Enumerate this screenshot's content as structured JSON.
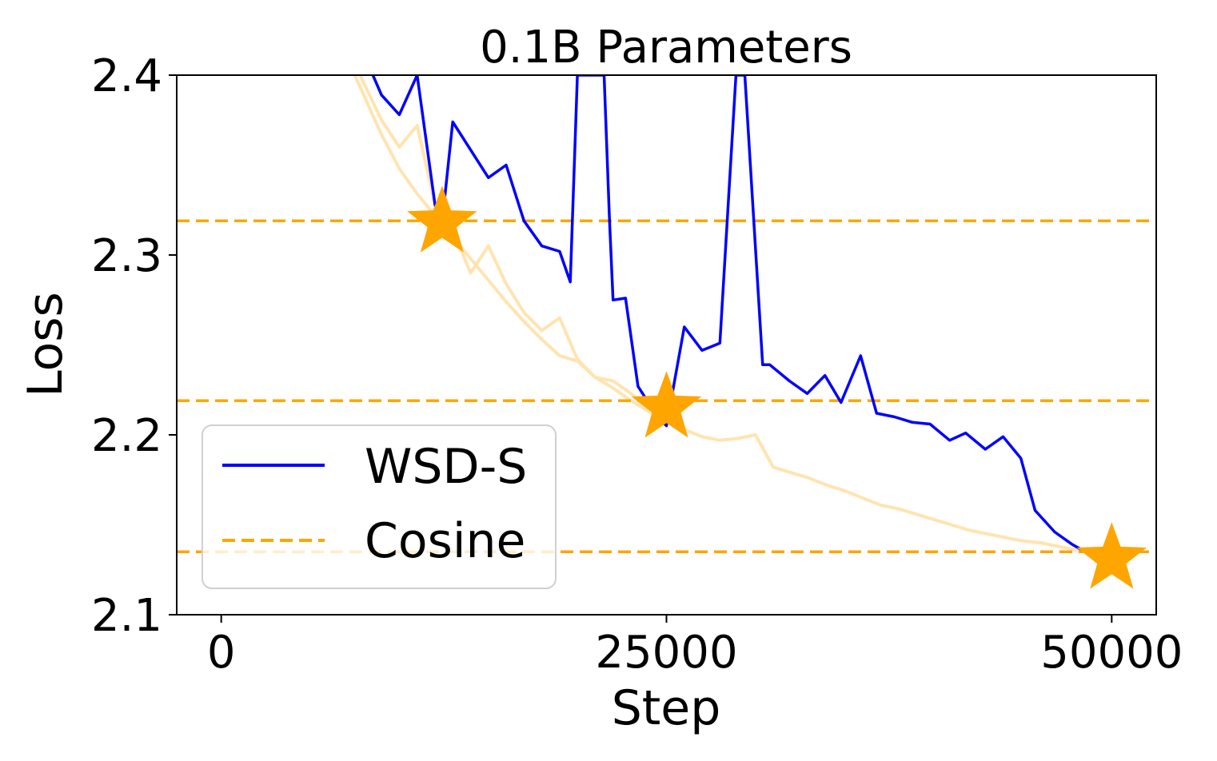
{
  "chart_data": {
    "type": "line",
    "title": "0.1B Parameters",
    "xlabel": "Step",
    "ylabel": "Loss",
    "xlim": [
      -2500,
      52500
    ],
    "ylim": [
      2.1,
      2.4
    ],
    "xticks": [
      0,
      25000,
      50000
    ],
    "yticks": [
      2.1,
      2.2,
      2.3,
      2.4
    ],
    "xtick_labels": [
      "0",
      "25000",
      "50000"
    ],
    "ytick_labels": [
      "2.1",
      "2.2",
      "2.3",
      "2.4"
    ],
    "grid": false,
    "legend_position": "lower-left",
    "series": [
      {
        "name": "WSD-S",
        "color": "#0000ff",
        "style": "solid",
        "x": [
          8300,
          9000,
          10000,
          11000,
          12000,
          12400,
          13000,
          15000,
          16000,
          17000,
          18000,
          19000,
          19600,
          20000,
          21500,
          21800,
          22000,
          22700,
          23400,
          24500,
          25000,
          26000,
          27000,
          28000,
          28900,
          29400,
          30400,
          30800,
          31900,
          32900,
          33900,
          34800,
          35900,
          36800,
          37800,
          38800,
          39800,
          40900,
          41800,
          42900,
          43900,
          44900,
          45700,
          46800,
          47800,
          48700,
          50000
        ],
        "y": [
          2.405,
          2.389,
          2.378,
          2.4,
          2.328,
          2.318,
          2.374,
          2.343,
          2.35,
          2.319,
          2.305,
          2.302,
          2.285,
          2.4,
          2.4,
          2.32,
          2.275,
          2.276,
          2.227,
          2.21,
          2.205,
          2.26,
          2.247,
          2.251,
          2.4,
          2.4,
          2.239,
          2.239,
          2.23,
          2.223,
          2.233,
          2.218,
          2.244,
          2.212,
          2.21,
          2.207,
          2.206,
          2.197,
          2.201,
          2.192,
          2.199,
          2.187,
          2.158,
          2.146,
          2.139,
          2.134,
          2.131
        ]
      },
      {
        "name": "Cosine",
        "color": "#ffa500",
        "style": "dashed",
        "levels": [
          2.319,
          2.219,
          2.135
        ]
      }
    ],
    "faded_series": [
      {
        "color": "#ffe4b0",
        "x": [
          7800,
          9000,
          10000,
          11000,
          12000,
          13000,
          14000,
          15000,
          16000,
          17000,
          18000,
          19000,
          20000,
          21000,
          22000,
          23000,
          24000,
          25000
        ],
        "y": [
          2.4,
          2.375,
          2.36,
          2.372,
          2.328,
          2.314,
          2.29,
          2.305,
          2.284,
          2.268,
          2.258,
          2.265,
          2.242,
          2.232,
          2.23,
          2.223,
          2.214,
          2.21
        ]
      },
      {
        "color": "#ffe4b0",
        "x": [
          7500,
          9000,
          10000,
          11000,
          12000,
          13000,
          14000,
          15000,
          16000,
          17000,
          18000,
          19000,
          20000,
          21000,
          22000,
          23000,
          24000,
          25000,
          26000,
          27000,
          28000,
          29000,
          30000,
          31000,
          32000,
          33000,
          34000,
          35000,
          36000,
          37000,
          38000,
          39000,
          40000,
          41000,
          42000,
          43000,
          44000,
          45000,
          46000,
          47000,
          48000,
          49000,
          50000
        ],
        "y": [
          2.4,
          2.367,
          2.348,
          2.334,
          2.322,
          2.31,
          2.298,
          2.286,
          2.274,
          2.263,
          2.253,
          2.244,
          2.241,
          2.232,
          2.226,
          2.219,
          2.213,
          2.208,
          2.203,
          2.199,
          2.197,
          2.198,
          2.2,
          2.182,
          2.179,
          2.176,
          2.172,
          2.169,
          2.165,
          2.161,
          2.159,
          2.156,
          2.153,
          2.15,
          2.147,
          2.145,
          2.143,
          2.141,
          2.14,
          2.138,
          2.136,
          2.134,
          2.132
        ]
      }
    ],
    "markers": [
      {
        "x": 12400,
        "y": 2.318,
        "color": "#ffa500",
        "shape": "star"
      },
      {
        "x": 25000,
        "y": 2.215,
        "color": "#ffa500",
        "shape": "star"
      },
      {
        "x": 50000,
        "y": 2.131,
        "color": "#ffa500",
        "shape": "star"
      }
    ]
  }
}
